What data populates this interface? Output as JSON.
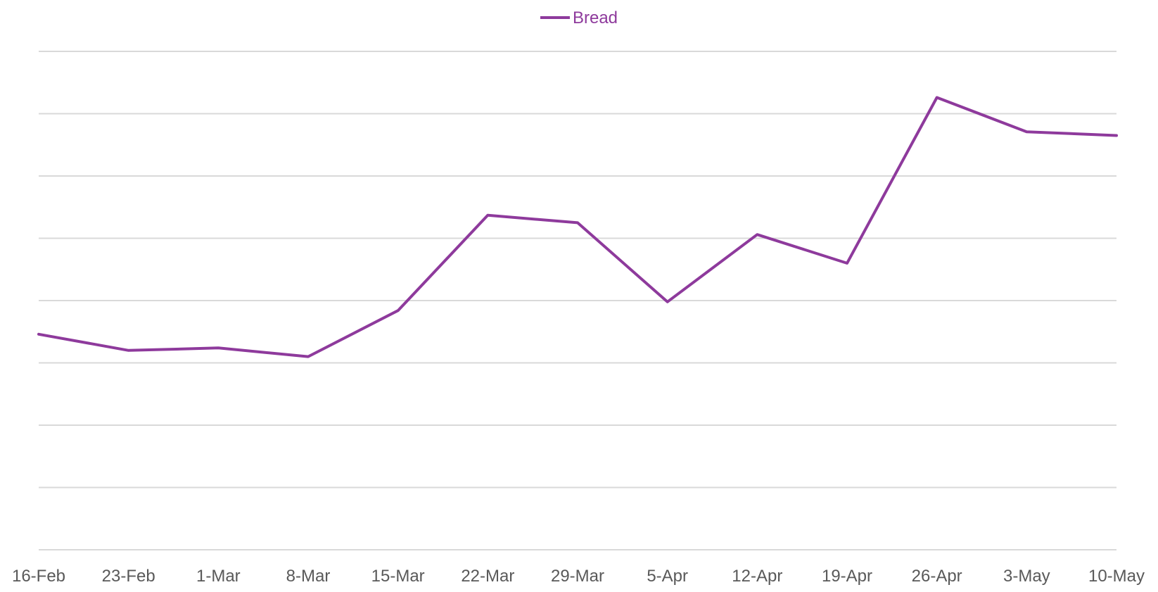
{
  "chart_data": {
    "type": "line",
    "categories": [
      "16-Feb",
      "23-Feb",
      "1-Mar",
      "8-Mar",
      "15-Mar",
      "22-Mar",
      "29-Mar",
      "5-Apr",
      "12-Apr",
      "19-Apr",
      "26-Apr",
      "3-May",
      "10-May"
    ],
    "series": [
      {
        "name": "Bread",
        "color": "#8e3a9c",
        "values": [
          3.46,
          3.2,
          3.24,
          3.1,
          3.84,
          5.37,
          5.25,
          3.98,
          5.06,
          4.6,
          7.26,
          6.71,
          6.65
        ]
      }
    ],
    "ylim": [
      0,
      8
    ],
    "y_grid_step": 1,
    "y_tick_labels_shown": false,
    "grid": true,
    "legend": "top-center",
    "title": "",
    "xlabel": "",
    "ylabel": ""
  }
}
